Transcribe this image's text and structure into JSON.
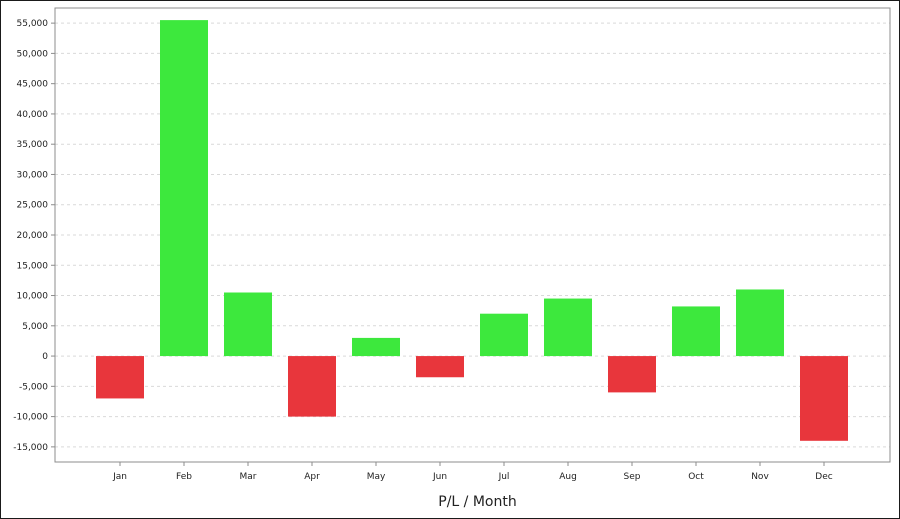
{
  "chart_data": {
    "type": "bar",
    "title": "",
    "xlabel": "P/L / Month",
    "ylabel": "",
    "categories": [
      "Jan",
      "Feb",
      "Mar",
      "Apr",
      "May",
      "Jun",
      "Jul",
      "Aug",
      "Sep",
      "Oct",
      "Nov",
      "Dec"
    ],
    "values": [
      -7000,
      55500,
      10500,
      -10000,
      3000,
      -3500,
      7000,
      9500,
      -6000,
      8200,
      11000,
      -14000
    ],
    "ylim": [
      -17500,
      57500
    ],
    "yticks": [
      55000,
      50000,
      45000,
      40000,
      35000,
      30000,
      25000,
      20000,
      15000,
      10000,
      5000,
      0,
      -5000,
      -10000,
      -15000
    ],
    "ytick_labels": [
      "55,000",
      "50,000",
      "45,000",
      "40,000",
      "35,000",
      "30,000",
      "25,000",
      "20,000",
      "15,000",
      "10,000",
      "5,000",
      "0",
      "-5,000",
      "-10,000",
      "-15,000"
    ],
    "grid": true,
    "positive_color": "#3de83d",
    "negative_color": "#e8363c",
    "grid_color": "#d9d9d9",
    "axis_color": "#8c8c8c"
  }
}
